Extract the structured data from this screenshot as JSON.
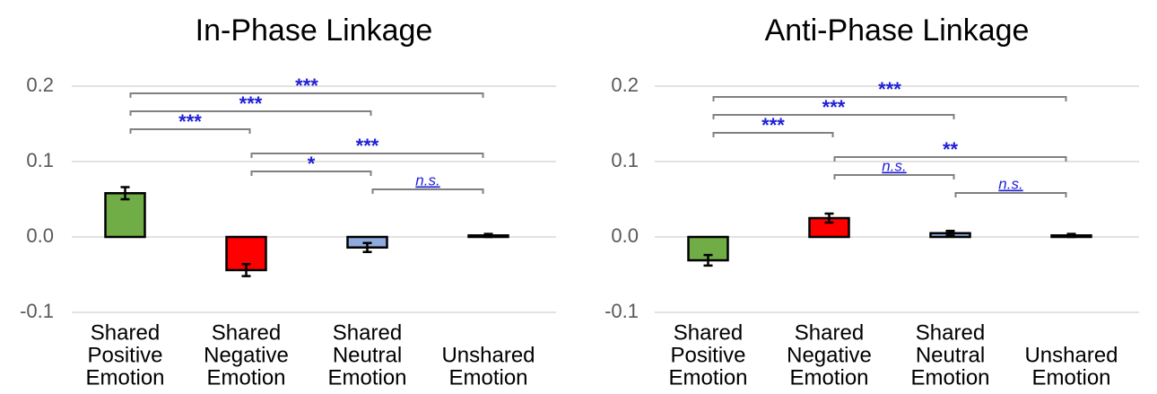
{
  "chart_data": [
    {
      "type": "bar",
      "title": "In-Phase Linkage",
      "categories": [
        [
          "Shared",
          "Positive",
          "Emotion"
        ],
        [
          "Shared",
          "Negative",
          "Emotion"
        ],
        [
          "Shared",
          "Neutral",
          "Emotion"
        ],
        [
          "Unshared",
          "Emotion"
        ]
      ],
      "values": [
        0.058,
        -0.044,
        -0.014,
        0.002
      ],
      "errors": [
        0.008,
        0.008,
        0.006,
        0.002
      ],
      "colors": [
        "#70ad47",
        "#ff0000",
        "#8faadc",
        "#404040"
      ],
      "ylim": [
        -0.1,
        0.2
      ],
      "yticks": [
        -0.1,
        {
          "value": 0,
          "label": "0.0"
        },
        0.1,
        0.2
      ],
      "grid": true,
      "comparisons": [
        {
          "from": 0,
          "to": 3,
          "label": "***"
        },
        {
          "from": 0,
          "to": 2,
          "label": "***"
        },
        {
          "from": 0,
          "to": 1,
          "label": "***"
        },
        {
          "from": 1,
          "to": 3,
          "label": "***"
        },
        {
          "from": 1,
          "to": 2,
          "label": "*"
        },
        {
          "from": 2,
          "to": 3,
          "label": "n.s."
        }
      ]
    },
    {
      "type": "bar",
      "title": "Anti-Phase Linkage",
      "categories": [
        [
          "Shared",
          "Positive",
          "Emotion"
        ],
        [
          "Shared",
          "Negative",
          "Emotion"
        ],
        [
          "Shared",
          "Neutral",
          "Emotion"
        ],
        [
          "Unshared",
          "Emotion"
        ]
      ],
      "values": [
        -0.031,
        0.025,
        0.005,
        0.002
      ],
      "errors": [
        0.007,
        0.006,
        0.003,
        0.002
      ],
      "colors": [
        "#70ad47",
        "#ff0000",
        "#8faadc",
        "#404040"
      ],
      "ylim": [
        -0.1,
        0.2
      ],
      "yticks": [
        -0.1,
        {
          "value": 0,
          "label": "0.0"
        },
        0.1,
        0.2
      ],
      "grid": true,
      "comparisons": [
        {
          "from": 0,
          "to": 3,
          "label": "***"
        },
        {
          "from": 0,
          "to": 2,
          "label": "***"
        },
        {
          "from": 0,
          "to": 1,
          "label": "***"
        },
        {
          "from": 1,
          "to": 3,
          "label": "**"
        },
        {
          "from": 1,
          "to": 2,
          "label": "n.s."
        },
        {
          "from": 2,
          "to": 3,
          "label": "n.s."
        }
      ]
    }
  ]
}
